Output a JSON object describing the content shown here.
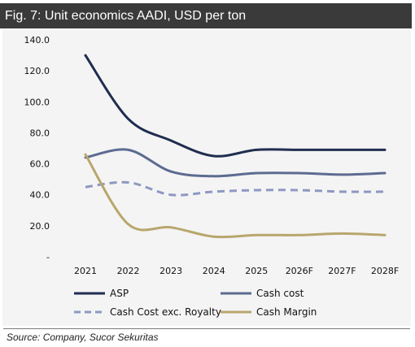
{
  "header": {
    "title": "Fig. 7: Unit economics AADI, USD per ton"
  },
  "footer": {
    "source": "Source: Company, Sucor Sekuritas"
  },
  "chart_data": {
    "type": "line",
    "title": "",
    "xlabel": "",
    "ylabel": "",
    "categories": [
      "2021",
      "2022",
      "2023",
      "2024",
      "2025",
      "2026F",
      "2027F",
      "2028F"
    ],
    "y_tick_labels": [
      "-",
      "20.0",
      "40.0",
      "60.0",
      "80.0",
      "100.0",
      "120.0",
      "140.0"
    ],
    "ylim": [
      0,
      140
    ],
    "grid": false,
    "legend_position": "bottom",
    "series": [
      {
        "name": "ASP",
        "color": "#1f2d4f",
        "style": "solid",
        "values": [
          130,
          89,
          75,
          65,
          69,
          69,
          69,
          69
        ]
      },
      {
        "name": "Cash cost",
        "color": "#5d6b91",
        "style": "solid",
        "values": [
          64,
          69,
          55,
          52,
          54,
          54,
          53,
          54
        ]
      },
      {
        "name": "Cash Cost exc. Royalty",
        "color": "#8e98c2",
        "style": "dashed",
        "values": [
          45,
          48,
          40,
          42,
          43,
          43,
          42,
          42
        ]
      },
      {
        "name": "Cash Margin",
        "color": "#b8a66c",
        "style": "solid",
        "values": [
          66,
          21,
          19,
          13,
          14,
          14,
          15,
          14
        ]
      }
    ]
  }
}
